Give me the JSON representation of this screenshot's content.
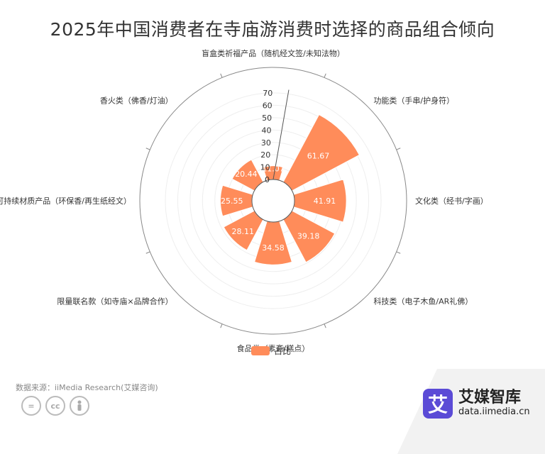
{
  "chart_data": {
    "type": "bar",
    "polar": true,
    "title": "2025年中国消费者在寺庙游消费时选择的商品组合倾向",
    "categories": [
      "盲盒类祈福产品（随机经文签/未知法物）",
      "功能类（手串/护身符）",
      "文化类（经书/字画）",
      "科技类（电子木鱼/AR礼佛）",
      "食品类（素斋/糕点）",
      "限量联名款（如寺庙×品牌合作）",
      "可持续材质产品（环保香/再生纸经文）",
      "香火类（佛香/灯油）"
    ],
    "series": [
      {
        "name": "占比",
        "values": [
          11.07,
          61.67,
          41.91,
          39.18,
          34.58,
          28.11,
          25.55,
          20.44
        ]
      }
    ],
    "radial_ticks": [
      "0",
      "10",
      "20",
      "30",
      "40",
      "50",
      "60",
      "70"
    ],
    "radial_range": [
      0,
      70
    ],
    "color": "#ff8c5a",
    "legend_position": "bottom"
  },
  "source_text": "数据来源：iiMedia Research(艾媒咨询)",
  "brand": {
    "logo_char": "艾",
    "name": "艾媒智库",
    "url": "data.iimedia.cn"
  },
  "license_icons": [
    "=",
    "cc",
    "person-icon"
  ]
}
